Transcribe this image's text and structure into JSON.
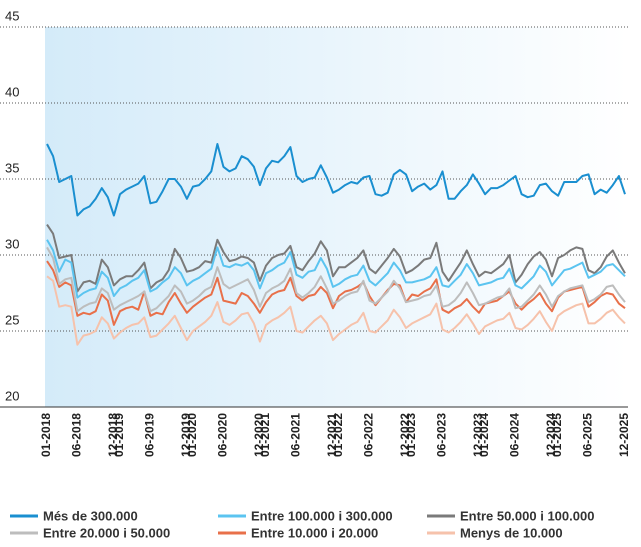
{
  "chart_data": {
    "type": "line",
    "categories": [
      "01-2018",
      null,
      null,
      null,
      null,
      "06-2018",
      null,
      null,
      null,
      null,
      null,
      "12-2018",
      "01-2019",
      null,
      null,
      null,
      null,
      "06-2019",
      null,
      null,
      null,
      null,
      null,
      "12-2019",
      "01-2020",
      null,
      null,
      null,
      null,
      "06-2020",
      null,
      null,
      null,
      null,
      null,
      "12-2020",
      "01-2021",
      null,
      null,
      null,
      null,
      "06-2021",
      null,
      null,
      null,
      null,
      null,
      "12-2021",
      "01-2022",
      null,
      null,
      null,
      null,
      "06-2022",
      null,
      null,
      null,
      null,
      null,
      "12-2022",
      "01-2023",
      null,
      null,
      null,
      null,
      "06-2023",
      null,
      null,
      null,
      null,
      null,
      "12-2023",
      "01-2024",
      null,
      null,
      null,
      null,
      "06-2024",
      null,
      null,
      null,
      null,
      null,
      "12-2024",
      "01-2025",
      null,
      null,
      null,
      null,
      "06-2025",
      null,
      null,
      null,
      null,
      null,
      "12-2025"
    ],
    "ylim": [
      20,
      45
    ],
    "yticks": [
      20,
      25,
      30,
      35,
      40,
      45
    ],
    "grid": true,
    "series": [
      {
        "name": "Més de 300.000",
        "color": "#1a8fd0",
        "values": [
          37.3,
          36.5,
          34.8,
          35.0,
          35.2,
          32.6,
          33.0,
          33.2,
          33.7,
          34.4,
          33.8,
          32.6,
          34.0,
          34.3,
          34.5,
          34.7,
          35.2,
          33.4,
          33.5,
          34.2,
          35.0,
          35.0,
          34.5,
          33.7,
          34.5,
          34.6,
          35.0,
          35.5,
          37.3,
          35.8,
          35.5,
          35.7,
          36.5,
          36.3,
          35.8,
          34.6,
          35.7,
          36.2,
          36.1,
          36.5,
          37.1,
          35.2,
          34.8,
          35.0,
          35.1,
          35.9,
          35.1,
          34.1,
          34.3,
          34.6,
          34.8,
          34.7,
          35.1,
          35.2,
          34.0,
          33.9,
          34.1,
          35.3,
          35.6,
          35.3,
          34.2,
          34.5,
          34.7,
          34.3,
          34.6,
          35.5,
          33.7,
          33.7,
          34.2,
          34.6,
          35.3,
          34.7,
          34.0,
          34.4,
          34.4,
          34.6,
          34.9,
          35.2,
          34.0,
          33.8,
          33.9,
          34.6,
          34.7,
          34.2,
          33.9,
          34.8,
          34.8,
          34.8,
          35.2,
          35.3,
          34.0,
          34.3,
          34.1,
          34.6,
          35.2,
          34.0
        ]
      },
      {
        "name": "Entre 100.000 i 300.000",
        "color": "#5bc4f0",
        "values": [
          31.0,
          30.3,
          28.9,
          29.7,
          29.5,
          27.2,
          27.5,
          27.7,
          27.8,
          28.9,
          28.5,
          27.3,
          27.8,
          28.0,
          28.3,
          28.5,
          29.0,
          27.6,
          27.8,
          28.2,
          28.5,
          29.2,
          28.8,
          28.0,
          28.3,
          28.5,
          28.8,
          29.1,
          30.5,
          29.3,
          29.2,
          29.4,
          29.3,
          29.5,
          29.0,
          27.8,
          28.8,
          29.0,
          29.3,
          29.5,
          30.2,
          28.7,
          28.5,
          28.9,
          29.0,
          29.8,
          29.1,
          27.9,
          28.1,
          28.4,
          28.6,
          28.7,
          29.3,
          28.3,
          28.0,
          28.4,
          28.8,
          29.5,
          29.0,
          28.2,
          28.2,
          28.3,
          28.4,
          28.6,
          29.2,
          28.0,
          27.9,
          28.3,
          28.7,
          29.4,
          28.8,
          28.0,
          28.1,
          28.2,
          28.4,
          28.5,
          29.1,
          28.0,
          27.8,
          28.2,
          28.6,
          29.3,
          28.9,
          28.0,
          28.5,
          29.0,
          29.1,
          29.3,
          29.5,
          28.5,
          28.7,
          28.9,
          29.3,
          29.4,
          29.0,
          28.6
        ]
      },
      {
        "name": "Entre 50.000 i 100.000",
        "color": "#7a7a7a",
        "values": [
          32.0,
          31.4,
          29.8,
          29.9,
          30.0,
          27.6,
          28.2,
          28.3,
          28.1,
          29.7,
          29.2,
          28.0,
          28.4,
          28.6,
          28.6,
          29.0,
          29.5,
          27.8,
          28.2,
          28.4,
          29.0,
          30.4,
          29.8,
          28.9,
          29.0,
          29.2,
          29.6,
          29.5,
          31.0,
          30.2,
          29.6,
          29.7,
          29.9,
          29.8,
          29.5,
          28.3,
          29.3,
          29.8,
          30.0,
          30.1,
          30.6,
          29.2,
          29.0,
          29.6,
          30.1,
          30.9,
          30.3,
          28.6,
          29.2,
          29.2,
          29.5,
          29.8,
          30.3,
          29.1,
          28.8,
          29.3,
          29.8,
          30.4,
          29.9,
          28.8,
          29.0,
          29.3,
          29.7,
          29.8,
          30.8,
          28.9,
          28.3,
          28.9,
          29.5,
          30.3,
          29.4,
          28.6,
          28.9,
          28.8,
          29.1,
          29.4,
          30.0,
          28.2,
          28.7,
          29.4,
          29.9,
          30.2,
          29.7,
          28.6,
          29.8,
          30.0,
          30.3,
          30.5,
          30.4,
          29.0,
          28.8,
          29.2,
          29.9,
          30.3,
          29.5,
          28.8
        ]
      },
      {
        "name": "Entre 20.000 i 50.000",
        "color": "#bdbdbd",
        "values": [
          30.5,
          29.8,
          28.1,
          28.4,
          28.5,
          26.3,
          26.6,
          26.8,
          26.9,
          27.8,
          27.5,
          26.4,
          26.7,
          26.9,
          27.1,
          27.3,
          27.6,
          26.3,
          26.5,
          26.9,
          27.3,
          28.0,
          27.6,
          26.8,
          27.0,
          27.3,
          27.7,
          27.9,
          29.2,
          28.1,
          27.8,
          28.0,
          28.2,
          28.4,
          27.7,
          26.6,
          27.5,
          27.8,
          28.0,
          28.3,
          29.1,
          27.5,
          27.2,
          27.5,
          27.9,
          28.6,
          27.8,
          26.8,
          27.0,
          27.3,
          27.5,
          27.6,
          28.3,
          27.0,
          26.8,
          27.2,
          27.6,
          28.3,
          27.8,
          26.9,
          27.0,
          27.1,
          27.3,
          27.4,
          28.0,
          26.6,
          26.7,
          27.0,
          27.5,
          28.2,
          27.5,
          26.7,
          26.8,
          27.0,
          27.2,
          27.3,
          27.8,
          26.5,
          26.6,
          27.0,
          27.4,
          28.0,
          27.4,
          26.6,
          27.3,
          27.6,
          27.8,
          27.9,
          28.0,
          26.9,
          27.1,
          27.4,
          27.9,
          28.0,
          27.4,
          26.9
        ]
      },
      {
        "name": "Entre 10.000 i 20.000",
        "color": "#e8704a",
        "values": [
          29.6,
          29.0,
          27.9,
          28.2,
          28.0,
          26.0,
          26.2,
          26.1,
          26.3,
          27.4,
          27.0,
          25.4,
          26.3,
          26.5,
          26.6,
          26.4,
          27.6,
          26.0,
          26.2,
          26.1,
          26.9,
          27.5,
          26.8,
          26.2,
          26.6,
          26.9,
          27.2,
          27.4,
          28.5,
          27.0,
          26.9,
          26.8,
          27.5,
          27.3,
          26.8,
          26.2,
          26.9,
          27.4,
          27.6,
          27.7,
          28.5,
          27.3,
          27.0,
          27.3,
          27.4,
          27.9,
          27.5,
          26.5,
          27.3,
          27.6,
          27.7,
          27.9,
          28.2,
          27.3,
          26.7,
          27.2,
          27.7,
          28.1,
          28.0,
          26.9,
          27.4,
          27.3,
          27.6,
          27.8,
          28.4,
          26.4,
          26.2,
          26.5,
          26.7,
          27.1,
          26.6,
          26.2,
          26.8,
          26.9,
          27.0,
          27.3,
          27.6,
          26.8,
          26.4,
          26.8,
          27.1,
          27.5,
          26.8,
          26.3,
          27.2,
          27.6,
          27.7,
          27.8,
          27.9,
          26.6,
          26.9,
          27.3,
          27.5,
          27.4,
          26.8,
          26.5
        ]
      },
      {
        "name": "Menys de 10.000",
        "color": "#f6c2ab",
        "values": [
          28.6,
          28.3,
          26.6,
          26.7,
          26.6,
          24.1,
          24.7,
          24.8,
          25.0,
          25.9,
          25.5,
          24.5,
          24.9,
          25.2,
          25.4,
          25.5,
          25.9,
          24.6,
          24.7,
          25.1,
          25.5,
          26.0,
          25.2,
          24.4,
          25.0,
          25.3,
          25.6,
          26.0,
          26.9,
          25.6,
          25.4,
          25.7,
          26.1,
          26.2,
          25.5,
          24.3,
          25.4,
          25.7,
          25.9,
          26.2,
          26.6,
          25.0,
          24.9,
          25.3,
          25.7,
          26.0,
          25.5,
          24.4,
          24.8,
          25.1,
          25.4,
          25.6,
          26.2,
          25.0,
          24.9,
          25.3,
          25.7,
          26.4,
          25.9,
          25.2,
          25.5,
          25.7,
          25.9,
          26.1,
          26.8,
          25.1,
          24.9,
          25.2,
          25.6,
          26.1,
          25.5,
          24.8,
          25.3,
          25.5,
          25.7,
          25.8,
          26.2,
          25.2,
          25.1,
          25.4,
          25.8,
          26.3,
          25.6,
          25.0,
          26.0,
          26.3,
          26.5,
          26.7,
          26.8,
          25.5,
          25.5,
          25.8,
          26.2,
          26.4,
          25.9,
          25.5
        ]
      }
    ]
  }
}
